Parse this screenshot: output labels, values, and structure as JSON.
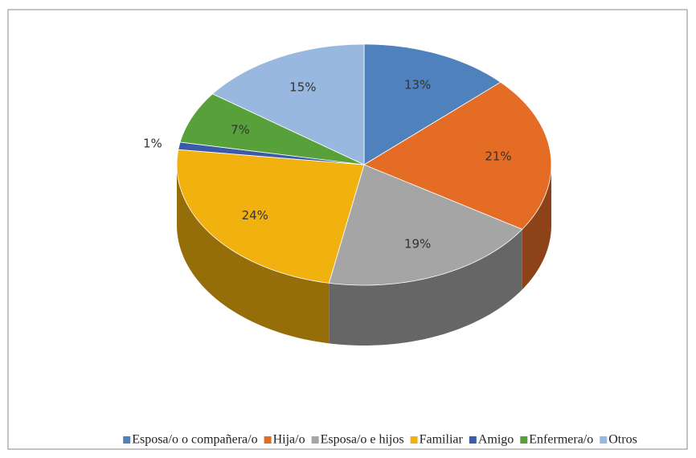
{
  "chart_data": {
    "type": "pie",
    "categories": [
      "Esposa/o o compañera/o",
      "Hija/o",
      "Esposa/o e hijos",
      "Familiar",
      "Amigo",
      "Enfermera/o",
      "Otros"
    ],
    "values": [
      13,
      21,
      19,
      24,
      1,
      7,
      15
    ],
    "value_labels": [
      "13%",
      "21%",
      "19%",
      "24%",
      "1%",
      "7%",
      "15%"
    ],
    "colors": [
      "#4f81bd",
      "#e46c25",
      "#a5a5a5",
      "#f1b20f",
      "#3a5ba8",
      "#58a03a",
      "#98b8e0"
    ],
    "legend": "bottom"
  }
}
